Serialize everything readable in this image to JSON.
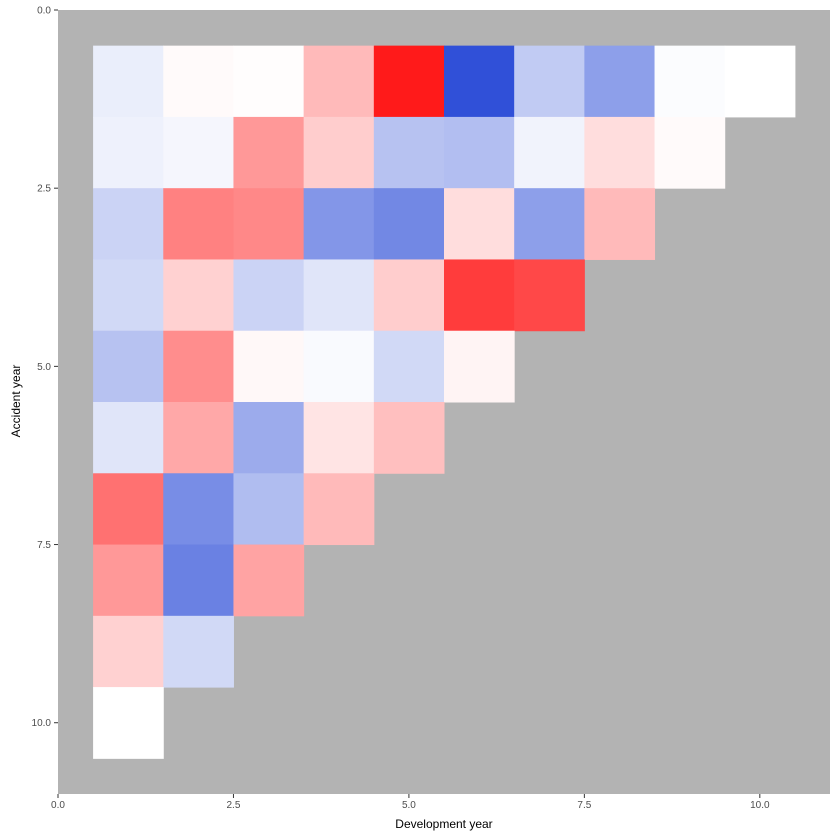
{
  "chart_data": {
    "type": "heatmap",
    "title": "",
    "xlabel": "Development year",
    "ylabel": "Accident year",
    "xlim": [
      0,
      11
    ],
    "ylim": [
      0,
      11
    ],
    "y_reversed": true,
    "x_ticks": [
      0,
      2.5,
      5,
      7.5,
      10
    ],
    "x_tick_labels": [
      "0.0",
      "2.5",
      "5.0",
      "7.5",
      "10.0"
    ],
    "y_ticks": [
      0,
      2.5,
      5,
      7.5,
      10
    ],
    "y_tick_labels": [
      "0.0",
      "2.5",
      "5.0",
      "7.5",
      "10.0"
    ],
    "panel_background": "#b3b3b3",
    "color_scale": {
      "low": "#3050d8",
      "mid": "#ffffff",
      "high": "#ff1a1a",
      "range": [
        -1,
        1
      ]
    },
    "rows": [
      {
        "accident_year": 1,
        "values": [
          -0.1,
          0.02,
          0.01,
          0.3,
          1.0,
          -1.0,
          -0.3,
          -0.55,
          -0.02,
          0
        ]
      },
      {
        "accident_year": 2,
        "values": [
          -0.08,
          -0.05,
          0.45,
          0.22,
          -0.35,
          -0.37,
          -0.07,
          0.15,
          0.02
        ]
      },
      {
        "accident_year": 3,
        "values": [
          -0.25,
          0.55,
          0.52,
          -0.6,
          -0.68,
          0.15,
          -0.55,
          0.3
        ]
      },
      {
        "accident_year": 4,
        "values": [
          -0.22,
          0.2,
          -0.25,
          -0.15,
          0.22,
          0.85,
          0.8
        ]
      },
      {
        "accident_year": 5,
        "values": [
          -0.35,
          0.5,
          0.03,
          -0.03,
          -0.22,
          0.05
        ]
      },
      {
        "accident_year": 6,
        "values": [
          -0.15,
          0.38,
          -0.48,
          0.12,
          0.28
        ]
      },
      {
        "accident_year": 7,
        "values": [
          0.62,
          -0.65,
          -0.38,
          0.3
        ]
      },
      {
        "accident_year": 8,
        "values": [
          0.45,
          -0.72,
          0.4
        ]
      },
      {
        "accident_year": 9,
        "values": [
          0.2,
          -0.22
        ]
      },
      {
        "accident_year": 10,
        "values": [
          0
        ]
      }
    ]
  }
}
